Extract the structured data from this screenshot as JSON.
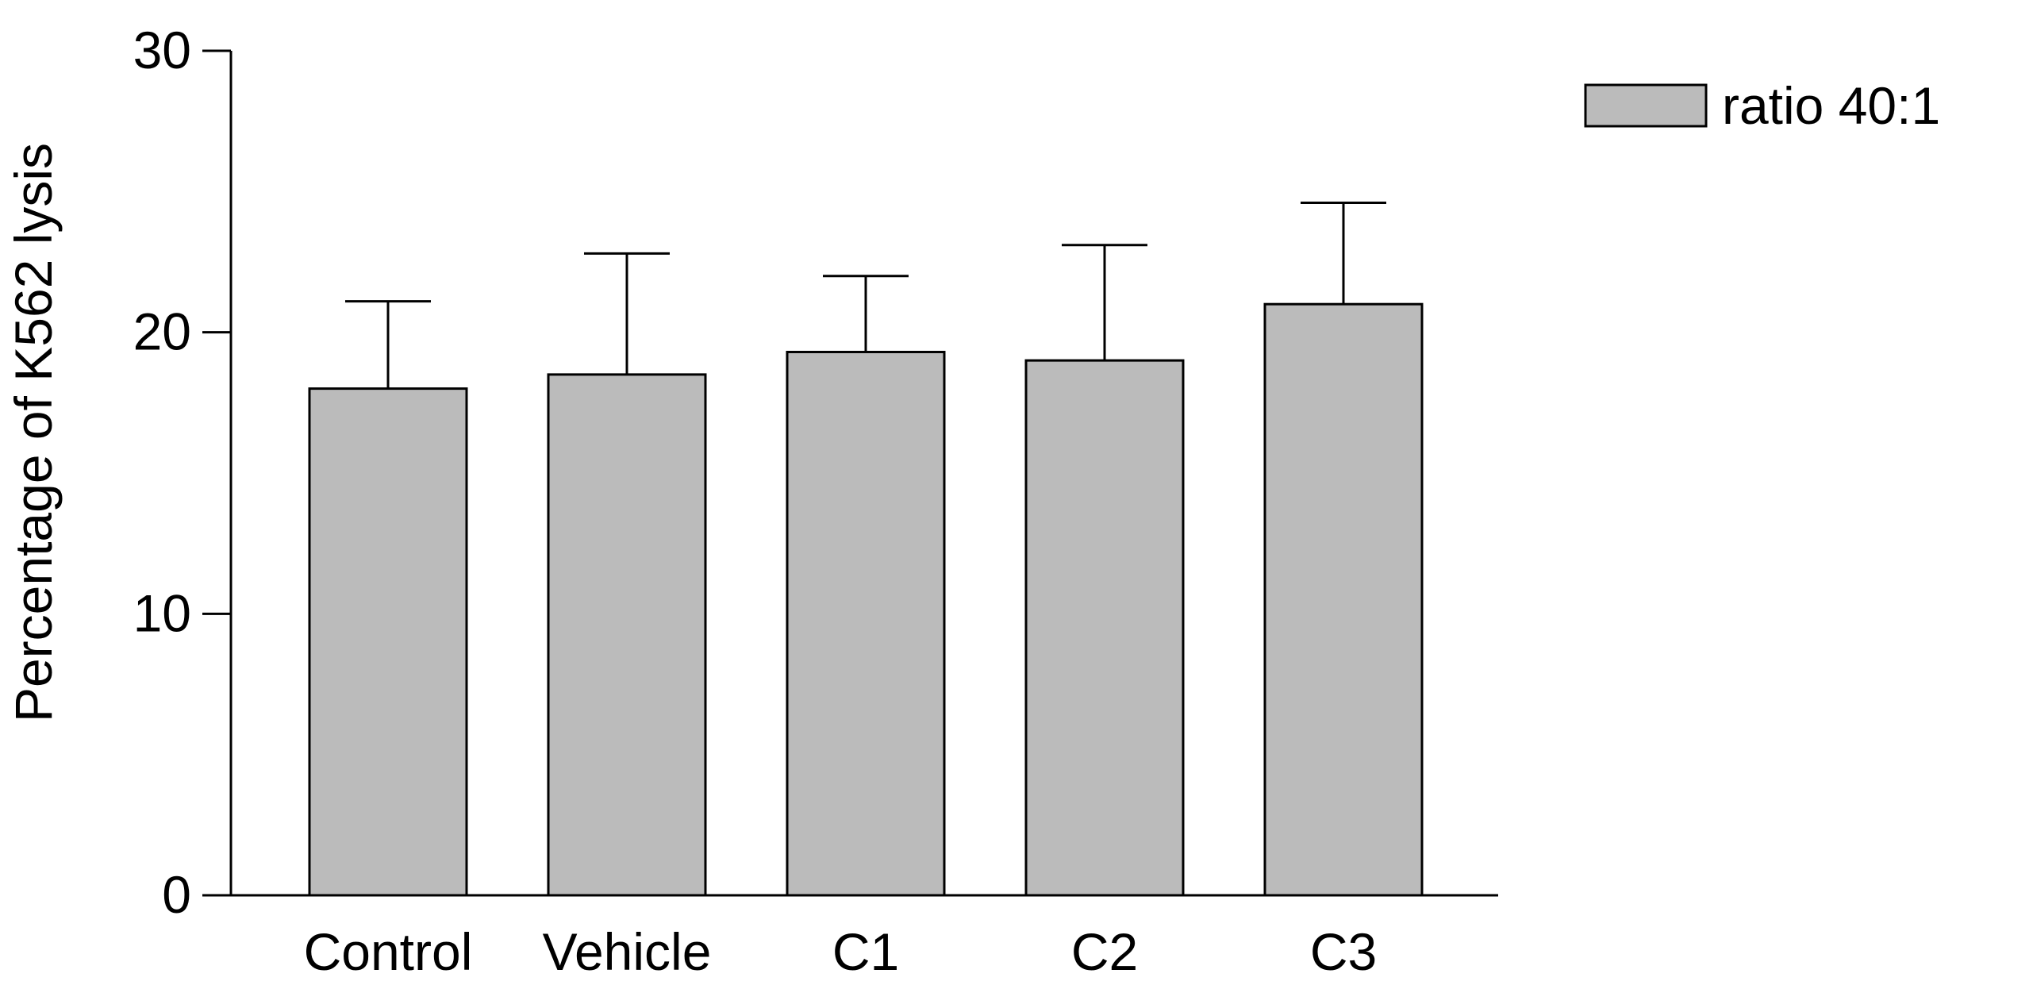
{
  "chart_data": {
    "type": "bar",
    "categories": [
      "Control",
      "Vehicle",
      "C1",
      "C2",
      "C3"
    ],
    "series": [
      {
        "name": "ratio 40:1",
        "values": [
          18.0,
          18.5,
          19.3,
          19.0,
          21.0
        ],
        "error": [
          3.1,
          4.3,
          2.7,
          4.1,
          3.6
        ],
        "color": "#bbbbbb"
      }
    ],
    "ylabel": "Percentage of K562 lysis",
    "xlabel": "",
    "ylim": [
      0,
      30
    ],
    "yticks": [
      0,
      10,
      20,
      30
    ],
    "grid": false,
    "legend_position": "top-right"
  }
}
